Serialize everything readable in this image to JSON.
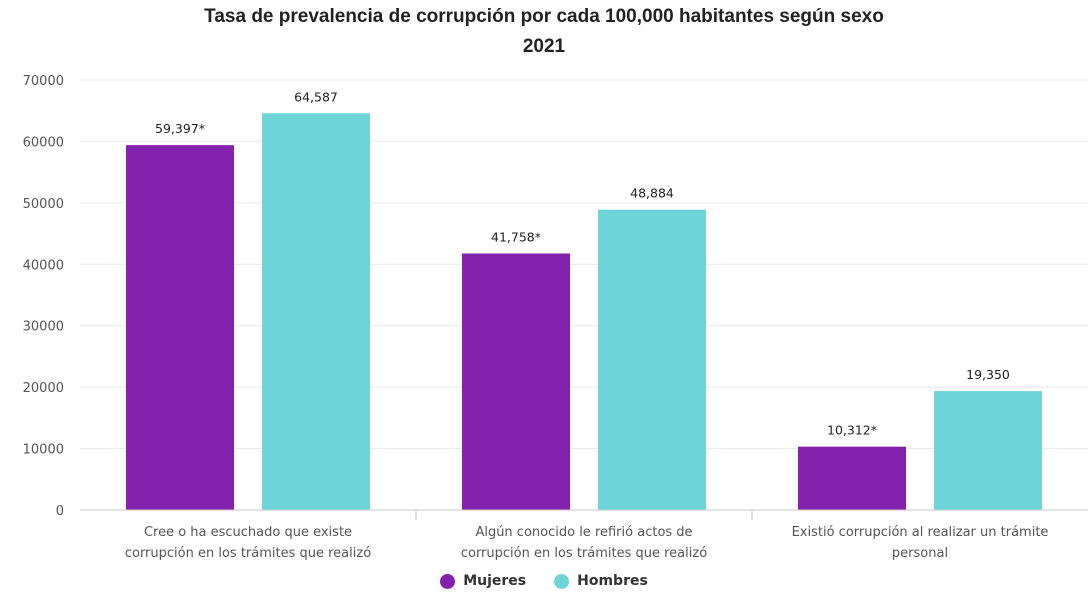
{
  "chart_data": {
    "type": "bar",
    "title": "Tasa de prevalencia de corrupción por cada 100,000 habitantes según sexo",
    "subtitle": "2021",
    "categories": [
      [
        "Cree o ha escuchado que existe",
        "corrupción en los trámites que realizó"
      ],
      [
        "Algún conocido le refirió actos de",
        "corrupción en los trámites que realizó"
      ],
      [
        "Existió corrupción al realizar un trámite",
        "personal"
      ]
    ],
    "series": [
      {
        "name": "Mujeres",
        "color": "#8522ad",
        "values": [
          59397,
          41758,
          10312
        ],
        "labels": [
          "59,397*",
          "41,758*",
          "10,312*"
        ]
      },
      {
        "name": "Hombres",
        "color": "#6dd5d8",
        "values": [
          64587,
          48884,
          19350
        ],
        "labels": [
          "64,587",
          "48,884",
          "19,350"
        ]
      }
    ],
    "ylim": [
      0,
      70000
    ],
    "yticks": [
      0,
      10000,
      20000,
      30000,
      40000,
      50000,
      60000,
      70000
    ],
    "grid": true,
    "legend_position": "bottom"
  }
}
